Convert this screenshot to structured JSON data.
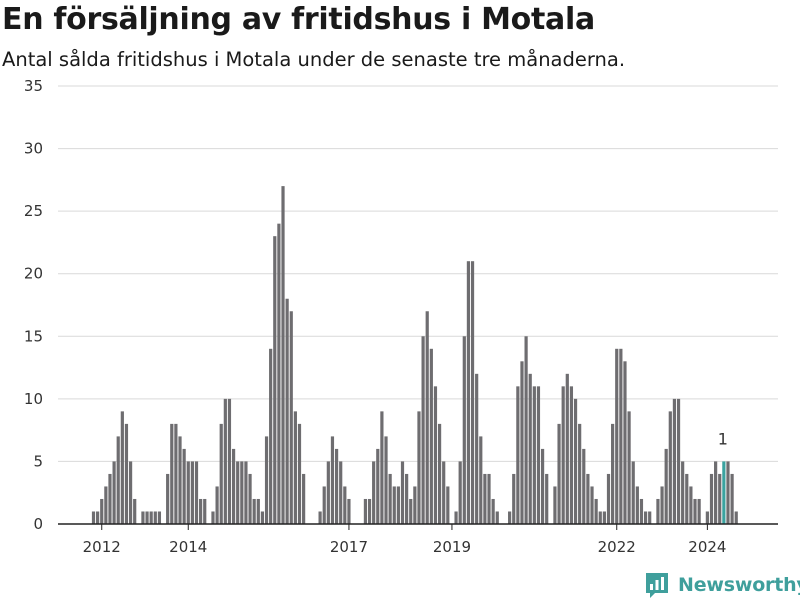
{
  "title": "En försäljning av fritidshus i Motala",
  "subtitle": "Antal sålda fritidshus i Motala under de senaste tre månaderna.",
  "brand": {
    "name": "Newsworthy",
    "icon": "newsworthy-logo-icon"
  },
  "colors": {
    "bar": "#6e6d70",
    "highlight": "#3aa3a0",
    "grid": "#d9d9d9",
    "axis": "#222222",
    "brand": "#3f9f9c"
  },
  "chart_data": {
    "type": "bar",
    "title": "En försäljning av fritidshus i Motala",
    "xlabel": "",
    "ylabel": "",
    "ylim": [
      0,
      35
    ],
    "yticks": [
      0,
      5,
      10,
      15,
      20,
      25,
      30,
      35
    ],
    "grid": true,
    "xticks": [
      {
        "label": "2012",
        "index": 2
      },
      {
        "label": "2014",
        "index": 23
      },
      {
        "label": "2017",
        "index": 62
      },
      {
        "label": "2019",
        "index": 87
      },
      {
        "label": "2022",
        "index": 127
      },
      {
        "label": "2024",
        "index": 149
      }
    ],
    "values": [
      1,
      1,
      2,
      3,
      4,
      5,
      7,
      9,
      8,
      5,
      2,
      0,
      1,
      1,
      1,
      1,
      1,
      0,
      4,
      8,
      8,
      7,
      6,
      5,
      5,
      5,
      2,
      2,
      0,
      1,
      3,
      8,
      10,
      10,
      6,
      5,
      5,
      5,
      4,
      2,
      2,
      1,
      7,
      14,
      23,
      24,
      27,
      18,
      17,
      9,
      8,
      4,
      0,
      0,
      0,
      1,
      3,
      5,
      7,
      6,
      5,
      3,
      2,
      0,
      0,
      0,
      2,
      2,
      5,
      6,
      9,
      7,
      4,
      3,
      3,
      5,
      4,
      2,
      3,
      9,
      15,
      17,
      14,
      11,
      8,
      5,
      3,
      0,
      1,
      5,
      15,
      21,
      21,
      12,
      7,
      4,
      4,
      2,
      1,
      0,
      0,
      1,
      4,
      11,
      13,
      15,
      12,
      11,
      11,
      6,
      4,
      0,
      3,
      8,
      11,
      12,
      11,
      10,
      8,
      6,
      4,
      3,
      2,
      1,
      1,
      4,
      8,
      14,
      14,
      13,
      9,
      5,
      3,
      2,
      1,
      1,
      0,
      2,
      3,
      6,
      9,
      10,
      10,
      5,
      4,
      3,
      2,
      2,
      0,
      1,
      4,
      5,
      4,
      5,
      5,
      4,
      1
    ],
    "highlight_index": 153,
    "data_labels": [
      {
        "index": 153,
        "text": "1"
      }
    ]
  }
}
